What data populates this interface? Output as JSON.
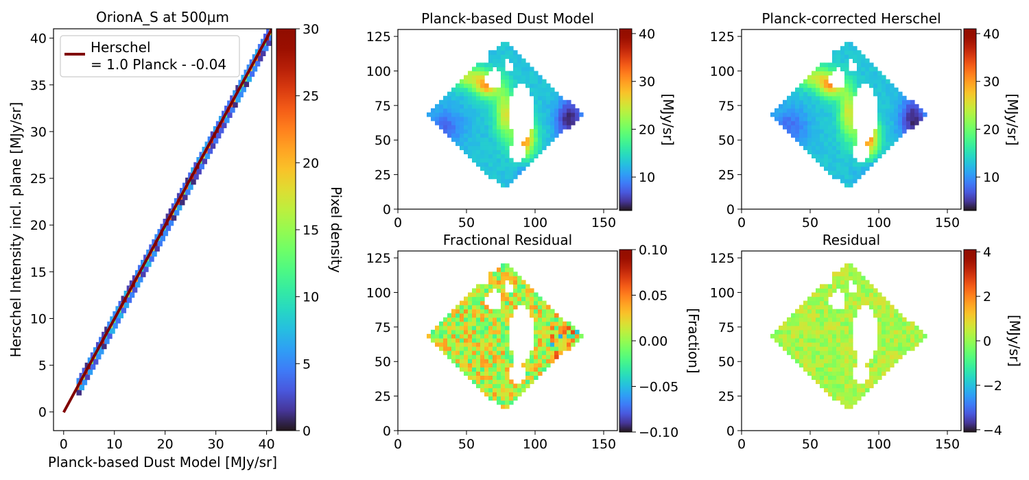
{
  "figure": {
    "colormap": "turbo",
    "bad_color": "#ffffff"
  },
  "chart_data": [
    {
      "id": "scatter",
      "type": "heatmap",
      "title": "OrionA_S at 500µm",
      "xlabel": "Planck-based Dust Model [MJy/sr]",
      "ylabel": "Herschel Intensity incl. plane [MJy/sr]",
      "xlim": [
        -2,
        41
      ],
      "ylim": [
        -2,
        41
      ],
      "xticks": [
        0,
        10,
        20,
        30,
        40
      ],
      "yticks": [
        0,
        5,
        10,
        15,
        20,
        25,
        30,
        35,
        40
      ],
      "colorbar": {
        "label": "Pixel density",
        "range": [
          0,
          30
        ],
        "ticks": [
          0,
          5,
          10,
          15,
          20,
          25,
          30
        ]
      },
      "fit": {
        "slope": 1.0,
        "intercept": -0.04,
        "x_range": [
          0,
          41
        ],
        "color": "#800000"
      },
      "legend": {
        "series": "Herschel",
        "equation": "= 1.0 Planck - -0.04",
        "position": "upper-left"
      },
      "grid": false
    },
    {
      "id": "dust_model",
      "type": "heatmap",
      "title": "Planck-based Dust Model",
      "xlim": [
        0,
        160
      ],
      "ylim": [
        0,
        130
      ],
      "xticks": [
        0,
        50,
        100,
        150
      ],
      "yticks": [
        0,
        25,
        50,
        75,
        100,
        125
      ],
      "colorbar": {
        "label": "[MJy/sr]",
        "range": [
          3,
          41
        ],
        "ticks": [
          10,
          20,
          30,
          40
        ]
      },
      "field": "intensity",
      "grid": false
    },
    {
      "id": "corrected",
      "type": "heatmap",
      "title": "Planck-corrected Herschel",
      "xlim": [
        0,
        160
      ],
      "ylim": [
        0,
        130
      ],
      "xticks": [
        0,
        50,
        100,
        150
      ],
      "yticks": [
        0,
        25,
        50,
        75,
        100,
        125
      ],
      "colorbar": {
        "label": "[MJy/sr]",
        "range": [
          3,
          41
        ],
        "ticks": [
          10,
          20,
          30,
          40
        ]
      },
      "field": "intensity",
      "grid": false
    },
    {
      "id": "frac_residual",
      "type": "heatmap",
      "title": "Fractional Residual",
      "xlim": [
        0,
        160
      ],
      "ylim": [
        0,
        130
      ],
      "xticks": [
        0,
        50,
        100,
        150
      ],
      "yticks": [
        0,
        25,
        50,
        75,
        100,
        125
      ],
      "colorbar": {
        "label": "[Fraction]",
        "range": [
          -0.1,
          0.1
        ],
        "ticks": [
          0.1,
          0.05,
          0.0,
          -0.05,
          -0.1
        ],
        "tick_labels": [
          "0.10",
          "0.05",
          "0.00",
          "−0.05",
          "−0.10"
        ]
      },
      "field": "frac",
      "grid": false
    },
    {
      "id": "residual",
      "type": "heatmap",
      "title": "Residual",
      "xlim": [
        0,
        160
      ],
      "ylim": [
        0,
        130
      ],
      "xticks": [
        0,
        50,
        100,
        150
      ],
      "yticks": [
        0,
        25,
        50,
        75,
        100,
        125
      ],
      "colorbar": {
        "label": "[MJy/sr]",
        "range": [
          -4.1,
          4.1
        ],
        "ticks": [
          4,
          2,
          0,
          -2,
          -4
        ],
        "tick_labels": [
          "4",
          "2",
          "0",
          "−2",
          "−4"
        ]
      },
      "field": "resid",
      "grid": false
    }
  ]
}
